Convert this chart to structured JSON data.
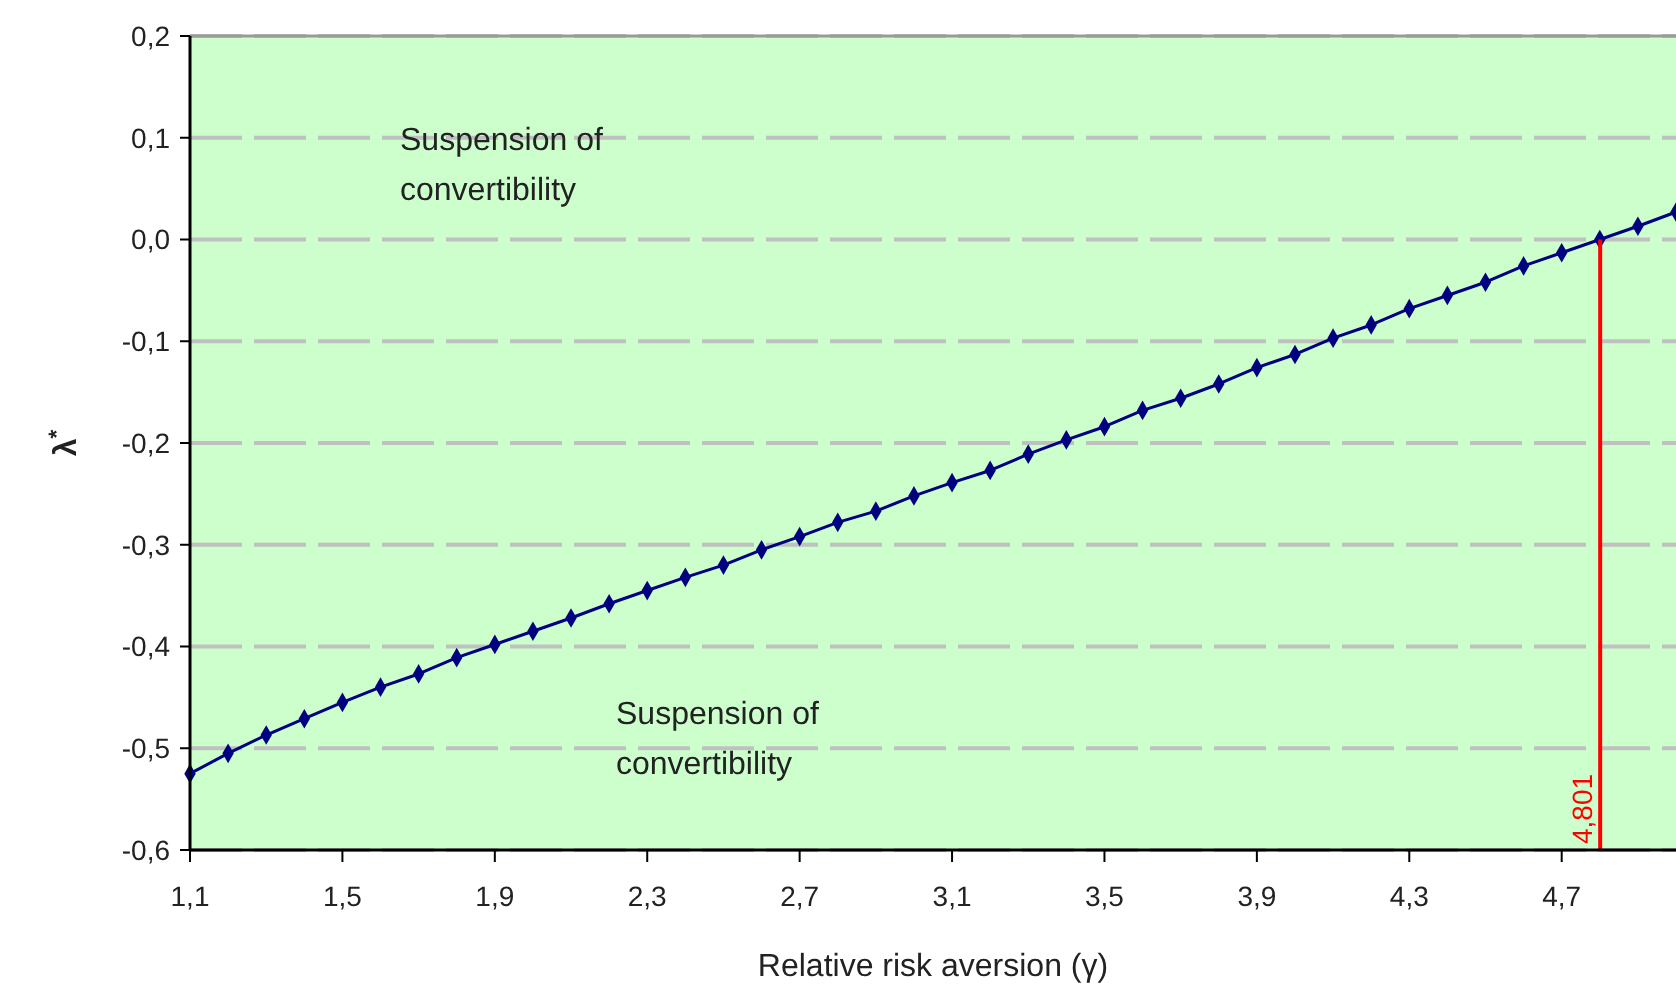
{
  "chart_data": {
    "type": "line",
    "xlabel": "Relative risk aversion (γ)",
    "ylabel": "λ$^{*}$",
    "x": [
      1.1,
      1.2,
      1.3,
      1.4,
      1.5,
      1.6,
      1.7,
      1.8,
      1.9,
      2.0,
      2.1,
      2.2,
      2.3,
      2.4,
      2.5,
      2.6,
      2.7,
      2.8,
      2.9,
      3.0,
      3.1,
      3.2,
      3.3,
      3.4,
      3.5,
      3.6,
      3.7,
      3.8,
      3.9,
      4.0,
      4.1,
      4.2,
      4.3,
      4.4,
      4.5,
      4.6,
      4.7,
      4.8,
      4.9,
      5.0
    ],
    "series": [
      {
        "color": "#000080",
        "values": [
          -0.525,
          -0.505,
          -0.487,
          -0.471,
          -0.455,
          -0.44,
          -0.427,
          -0.411,
          -0.398,
          -0.385,
          -0.372,
          -0.358,
          -0.345,
          -0.332,
          -0.32,
          -0.305,
          -0.292,
          -0.278,
          -0.267,
          -0.252,
          -0.239,
          -0.227,
          -0.211,
          -0.197,
          -0.184,
          -0.168,
          -0.156,
          -0.142,
          -0.126,
          -0.113,
          -0.097,
          -0.084,
          -0.068,
          -0.055,
          -0.042,
          -0.026,
          -0.013,
          0.0,
          0.013,
          0.027
        ]
      }
    ],
    "xlim": [
      1.1,
      5.0
    ],
    "xticks": [
      {
        "value": 1.1,
        "label": "1,1"
      },
      {
        "value": 1.5,
        "label": "1,5"
      },
      {
        "value": 1.9,
        "label": "1,9"
      },
      {
        "value": 2.3,
        "label": "2,3"
      },
      {
        "value": 2.7,
        "label": "2,7"
      },
      {
        "value": 3.1,
        "label": "3,1"
      },
      {
        "value": 3.5,
        "label": "3,5"
      },
      {
        "value": 3.9,
        "label": "3,9"
      },
      {
        "value": 4.3,
        "label": "4,3"
      },
      {
        "value": 4.7,
        "label": "4,7"
      }
    ],
    "ylim": [
      -0.6,
      0.2
    ],
    "yticks": [
      {
        "value": -0.6,
        "label": "-0,6"
      },
      {
        "value": -0.5,
        "label": "-0,5"
      },
      {
        "value": -0.4,
        "label": "-0,4"
      },
      {
        "value": -0.3,
        "label": "-0,3"
      },
      {
        "value": -0.2,
        "label": "-0,2"
      },
      {
        "value": -0.1,
        "label": "-0,1"
      },
      {
        "value": 0,
        "label": "0,0"
      },
      {
        "value": 0.1,
        "label": "0,1"
      },
      {
        "value": 0.2,
        "label": "0,2"
      }
    ],
    "ref_lines": [
      {
        "axis": "x",
        "value": 4.801,
        "label": "4,801",
        "color": "#ff0000"
      }
    ],
    "annotations": [
      "Suspension of convertibility",
      "Suspension of convertibility"
    ],
    "grid": "y",
    "marker": "diamond",
    "line_style": "solid"
  }
}
